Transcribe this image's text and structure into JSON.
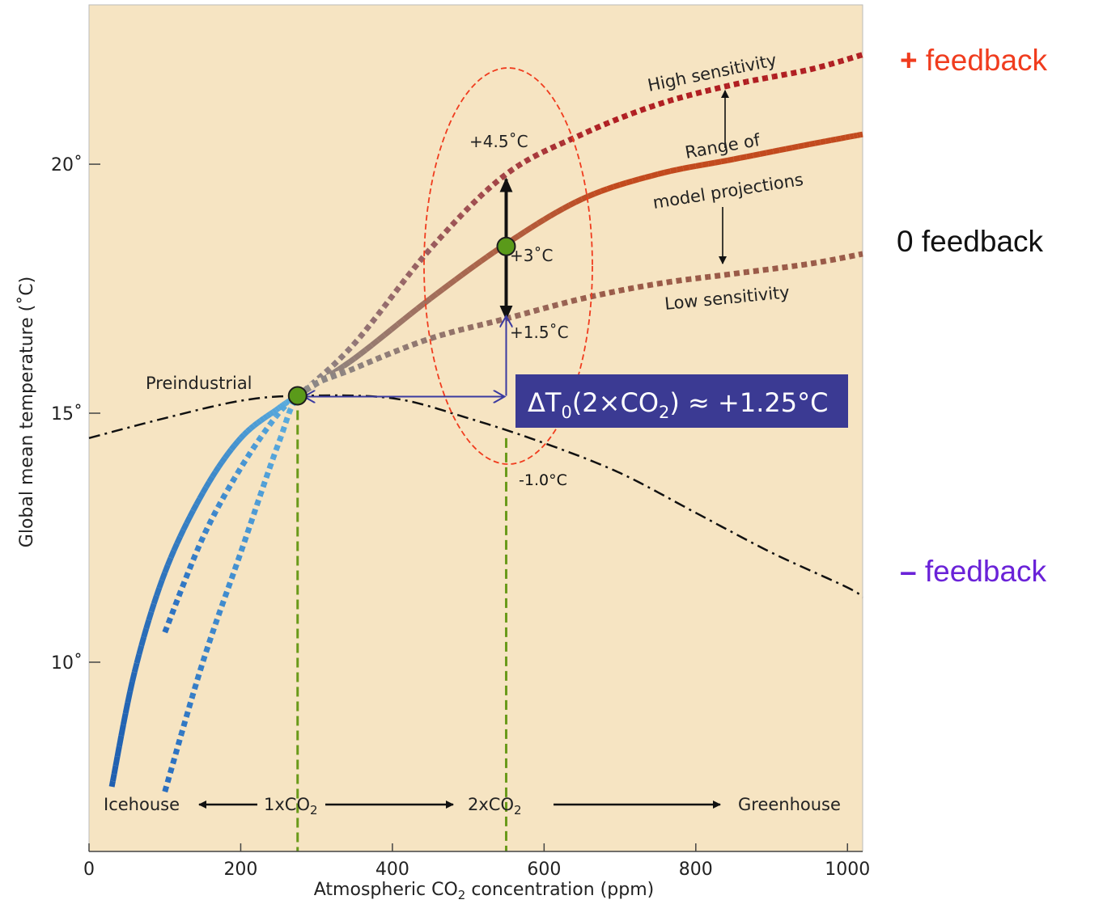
{
  "chart_data": {
    "type": "line",
    "xlabel_pre": "Atmospheric CO",
    "xlabel_sub": "2",
    "xlabel_post": " concentration (ppm)",
    "ylabel": "Global mean temperature (˚C)",
    "xlim": [
      0,
      1020
    ],
    "ylim": [
      6.2,
      23.2
    ],
    "x_ticks": [
      0,
      200,
      400,
      600,
      800,
      1000
    ],
    "x_tick_labels": [
      "0",
      "200",
      "400",
      "600",
      "800",
      "1000"
    ],
    "y_ticks": [
      10,
      15,
      20
    ],
    "y_tick_labels": [
      "10˚",
      "15˚",
      "20˚"
    ],
    "grid": false,
    "series": [
      {
        "name": "High sensitivity",
        "style": "dotted",
        "color_hi": "#b01e22",
        "color_lo": "#2a6fc0",
        "x": [
          100,
          150,
          200,
          250,
          280,
          350,
          450,
          550,
          650,
          750,
          850,
          950,
          1020
        ],
        "y": [
          10.6,
          12.5,
          13.9,
          15.0,
          15.4,
          16.4,
          18.3,
          19.8,
          20.6,
          21.2,
          21.6,
          21.9,
          22.2
        ]
      },
      {
        "name": "",
        "style": "solid",
        "color_hi": "#c24a1e",
        "color_lo": "#1f5fb0",
        "x": [
          30,
          60,
          100,
          150,
          200,
          250,
          280,
          350,
          450,
          550,
          650,
          750,
          850,
          950,
          1020
        ],
        "y": [
          7.5,
          9.8,
          11.8,
          13.4,
          14.5,
          15.1,
          15.4,
          16.1,
          17.3,
          18.4,
          19.3,
          19.8,
          20.1,
          20.4,
          20.6
        ],
        "thickness": 7
      },
      {
        "name": "Low sensitivity",
        "style": "dotted",
        "color_hi": "#9a5a48",
        "color_lo": "#2a6fc0",
        "x": [
          100,
          150,
          200,
          250,
          280,
          350,
          450,
          550,
          650,
          750,
          850,
          950,
          1020
        ],
        "y": [
          7.4,
          10.0,
          12.2,
          14.4,
          15.4,
          15.9,
          16.5,
          16.9,
          17.3,
          17.6,
          17.8,
          18.0,
          18.2
        ]
      },
      {
        "name": "",
        "style": "dashdot",
        "color": "#111111",
        "x": [
          0,
          100,
          200,
          280,
          400,
          500,
          600,
          700,
          800,
          900,
          1000,
          1020
        ],
        "y": [
          14.5,
          14.9,
          15.25,
          15.35,
          15.3,
          14.9,
          14.4,
          13.8,
          13.0,
          12.2,
          11.5,
          11.3
        ]
      }
    ],
    "points": [
      {
        "label": "Preindustrial",
        "x": 275,
        "y": 15.35
      },
      {
        "label": "+3˚C",
        "x": 550,
        "y": 18.35
      }
    ],
    "annotations": {
      "high_label": "High sensitivity",
      "low_label": "Low sensitivity",
      "range_line1": "Range of",
      "range_line2": "model projections",
      "plus45": "+4.5˚C",
      "plus3": "+3˚C",
      "plus15": "+1.5˚C",
      "minus10": "-1.0°C",
      "preindustrial": "Preindustrial",
      "box_delta": "ΔT",
      "box_sub0": "0",
      "box_mid": "(2×CO",
      "box_sub2": "2",
      "box_end": ") ≈ +1.25°C",
      "icehouse": "Icehouse",
      "co2_1x_pre": "1xCO",
      "co2_2x_pre": "2xCO",
      "co2_sub": "2",
      "greenhouse": "Greenhouse"
    },
    "colors": {
      "background": "#f6e4c2",
      "box_fill": "#3b3a93",
      "box_text": "#ffffff",
      "ellipse": "#f03c1e",
      "vline": "#6a9a1a",
      "marker": "#5a9a1a",
      "blue_arrow": "#3a3aa0"
    }
  },
  "side_labels": {
    "positive_symbol": "+",
    "positive_text": " feedback",
    "zero_text": "0 feedback",
    "negative_symbol": "–",
    "negative_text": " feedback"
  }
}
